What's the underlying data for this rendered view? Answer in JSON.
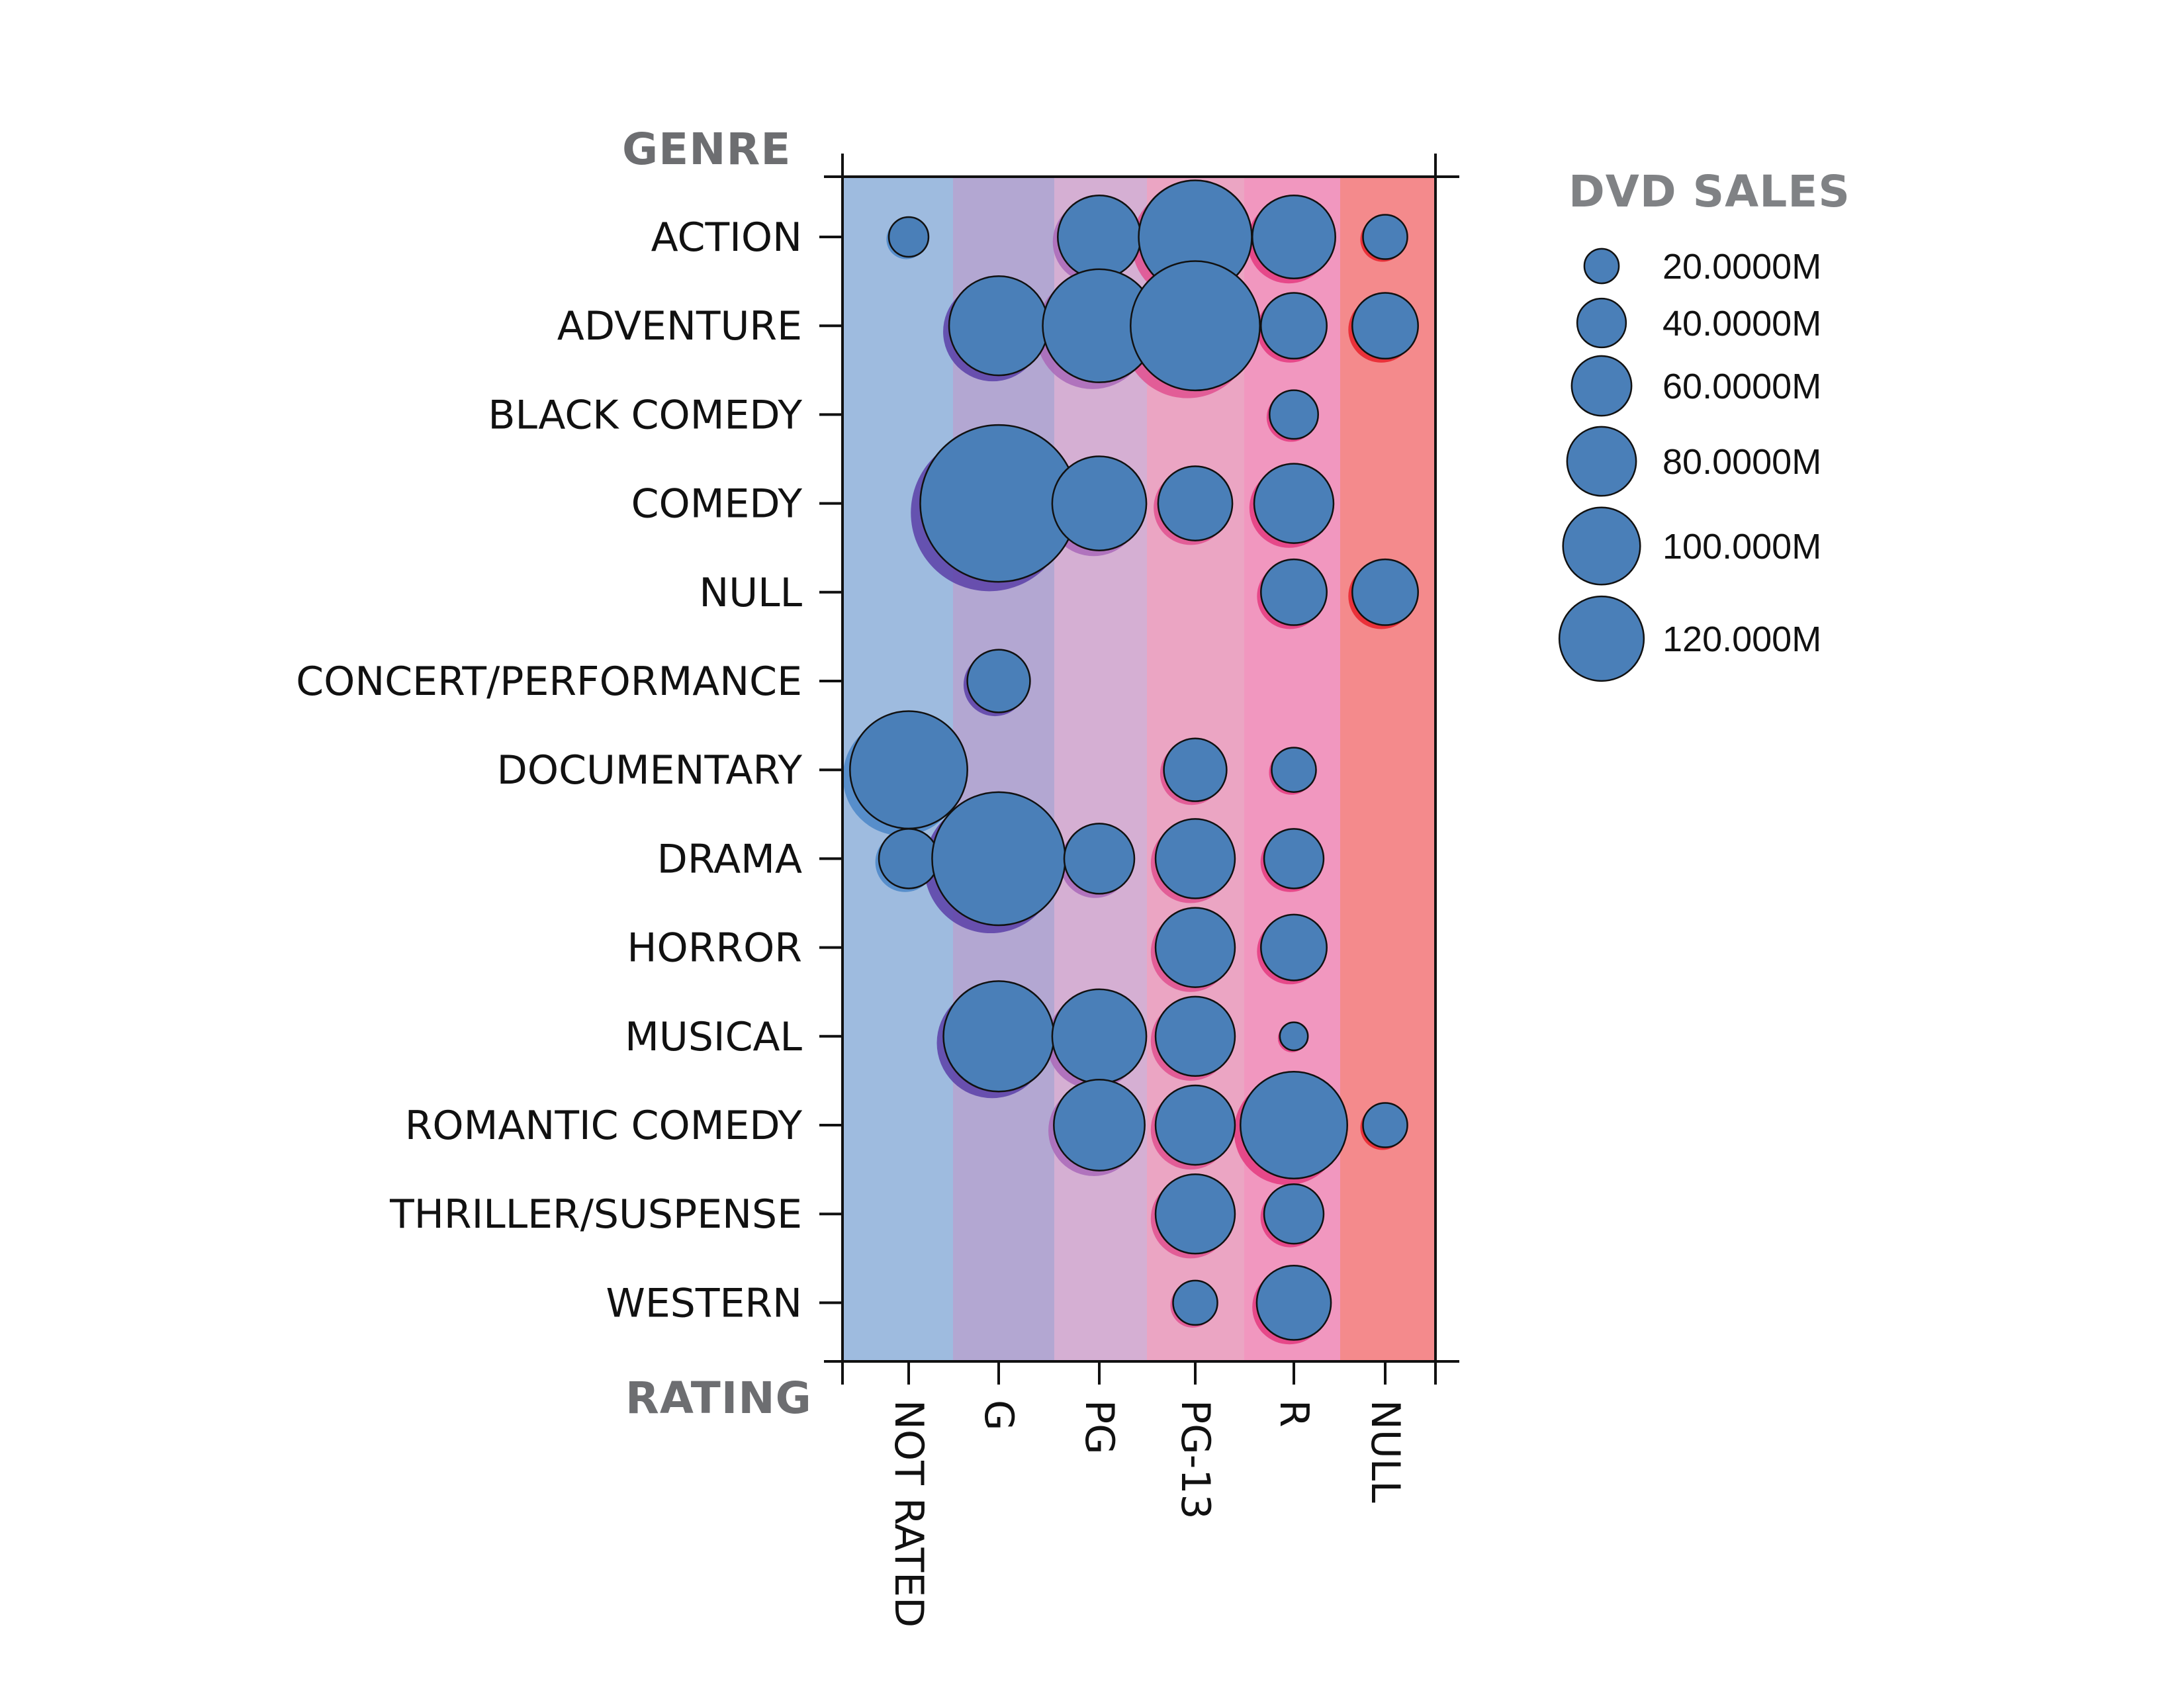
{
  "chart_data": {
    "type": "scatter",
    "subtype": "bubble-matrix",
    "y_axis_title": "GENRE",
    "x_axis_title": "RATING",
    "genres": [
      "ACTION",
      "ADVENTURE",
      "BLACK COMEDY",
      "COMEDY",
      "NULL",
      "CONCERT/PERFORMANCE",
      "DOCUMENTARY",
      "DRAMA",
      "HORROR",
      "MUSICAL",
      "ROMANTIC COMEDY",
      "THRILLER/SUSPENSE",
      "WESTERN"
    ],
    "ratings": [
      "NOT RATED",
      "G",
      "PG",
      "PG-13",
      "R",
      "NULL"
    ],
    "rating_band_colors": [
      "#9ebbdf",
      "#b3a7d2",
      "#d5afd3",
      "#eba5c3",
      "#f197bf",
      "#f48a8c"
    ],
    "rating_shadow_colors": [
      "#4a86c8",
      "#5b3fa8",
      "#a968b9",
      "#e0508f",
      "#e43a7f",
      "#e8212b"
    ],
    "bubble_color": "#4a7fb8",
    "size_legend": {
      "title": "DVD SALES",
      "entries": [
        {
          "label": "20.0000M",
          "value": 20
        },
        {
          "label": "40.0000M",
          "value": 40
        },
        {
          "label": "60.0000M",
          "value": 60
        },
        {
          "label": "80.0000M",
          "value": 80
        },
        {
          "label": "100.000M",
          "value": 100
        },
        {
          "label": "120.000M",
          "value": 120
        }
      ]
    },
    "value_unit": "M",
    "points": [
      {
        "genre": "ACTION",
        "rating": "NOT RATED",
        "value": 8
      },
      {
        "genre": "ACTION",
        "rating": "PG",
        "value": 35
      },
      {
        "genre": "ACTION",
        "rating": "PG-13",
        "value": 65
      },
      {
        "genre": "ACTION",
        "rating": "R",
        "value": 35
      },
      {
        "genre": "ACTION",
        "rating": "NULL",
        "value": 10
      },
      {
        "genre": "ADVENTURE",
        "rating": "G",
        "value": 50
      },
      {
        "genre": "ADVENTURE",
        "rating": "PG",
        "value": 65
      },
      {
        "genre": "ADVENTURE",
        "rating": "PG-13",
        "value": 85
      },
      {
        "genre": "ADVENTURE",
        "rating": "R",
        "value": 22
      },
      {
        "genre": "ADVENTURE",
        "rating": "NULL",
        "value": 22
      },
      {
        "genre": "BLACK COMEDY",
        "rating": "R",
        "value": 12
      },
      {
        "genre": "COMEDY",
        "rating": "G",
        "value": 125
      },
      {
        "genre": "COMEDY",
        "rating": "PG",
        "value": 45
      },
      {
        "genre": "COMEDY",
        "rating": "PG-13",
        "value": 28
      },
      {
        "genre": "COMEDY",
        "rating": "R",
        "value": 32
      },
      {
        "genre": "NULL",
        "rating": "R",
        "value": 22
      },
      {
        "genre": "NULL",
        "rating": "NULL",
        "value": 22
      },
      {
        "genre": "CONCERT/PERFORMANCE",
        "rating": "G",
        "value": 20
      },
      {
        "genre": "DOCUMENTARY",
        "rating": "NOT RATED",
        "value": 70
      },
      {
        "genre": "DOCUMENTARY",
        "rating": "PG-13",
        "value": 20
      },
      {
        "genre": "DOCUMENTARY",
        "rating": "R",
        "value": 10
      },
      {
        "genre": "DRAMA",
        "rating": "NOT RATED",
        "value": 18
      },
      {
        "genre": "DRAMA",
        "rating": "G",
        "value": 90
      },
      {
        "genre": "DRAMA",
        "rating": "PG",
        "value": 25
      },
      {
        "genre": "DRAMA",
        "rating": "PG-13",
        "value": 32
      },
      {
        "genre": "DRAMA",
        "rating": "R",
        "value": 18
      },
      {
        "genre": "HORROR",
        "rating": "PG-13",
        "value": 32
      },
      {
        "genre": "HORROR",
        "rating": "R",
        "value": 22
      },
      {
        "genre": "MUSICAL",
        "rating": "G",
        "value": 62
      },
      {
        "genre": "MUSICAL",
        "rating": "PG",
        "value": 45
      },
      {
        "genre": "MUSICAL",
        "rating": "PG-13",
        "value": 32
      },
      {
        "genre": "MUSICAL",
        "rating": "R",
        "value": 4
      },
      {
        "genre": "ROMANTIC COMEDY",
        "rating": "PG",
        "value": 42
      },
      {
        "genre": "ROMANTIC COMEDY",
        "rating": "PG-13",
        "value": 32
      },
      {
        "genre": "ROMANTIC COMEDY",
        "rating": "R",
        "value": 58
      },
      {
        "genre": "ROMANTIC COMEDY",
        "rating": "NULL",
        "value": 10
      },
      {
        "genre": "THRILLER/SUSPENSE",
        "rating": "PG-13",
        "value": 32
      },
      {
        "genre": "THRILLER/SUSPENSE",
        "rating": "R",
        "value": 18
      },
      {
        "genre": "WESTERN",
        "rating": "PG-13",
        "value": 10
      },
      {
        "genre": "WESTERN",
        "rating": "R",
        "value": 28
      }
    ]
  }
}
